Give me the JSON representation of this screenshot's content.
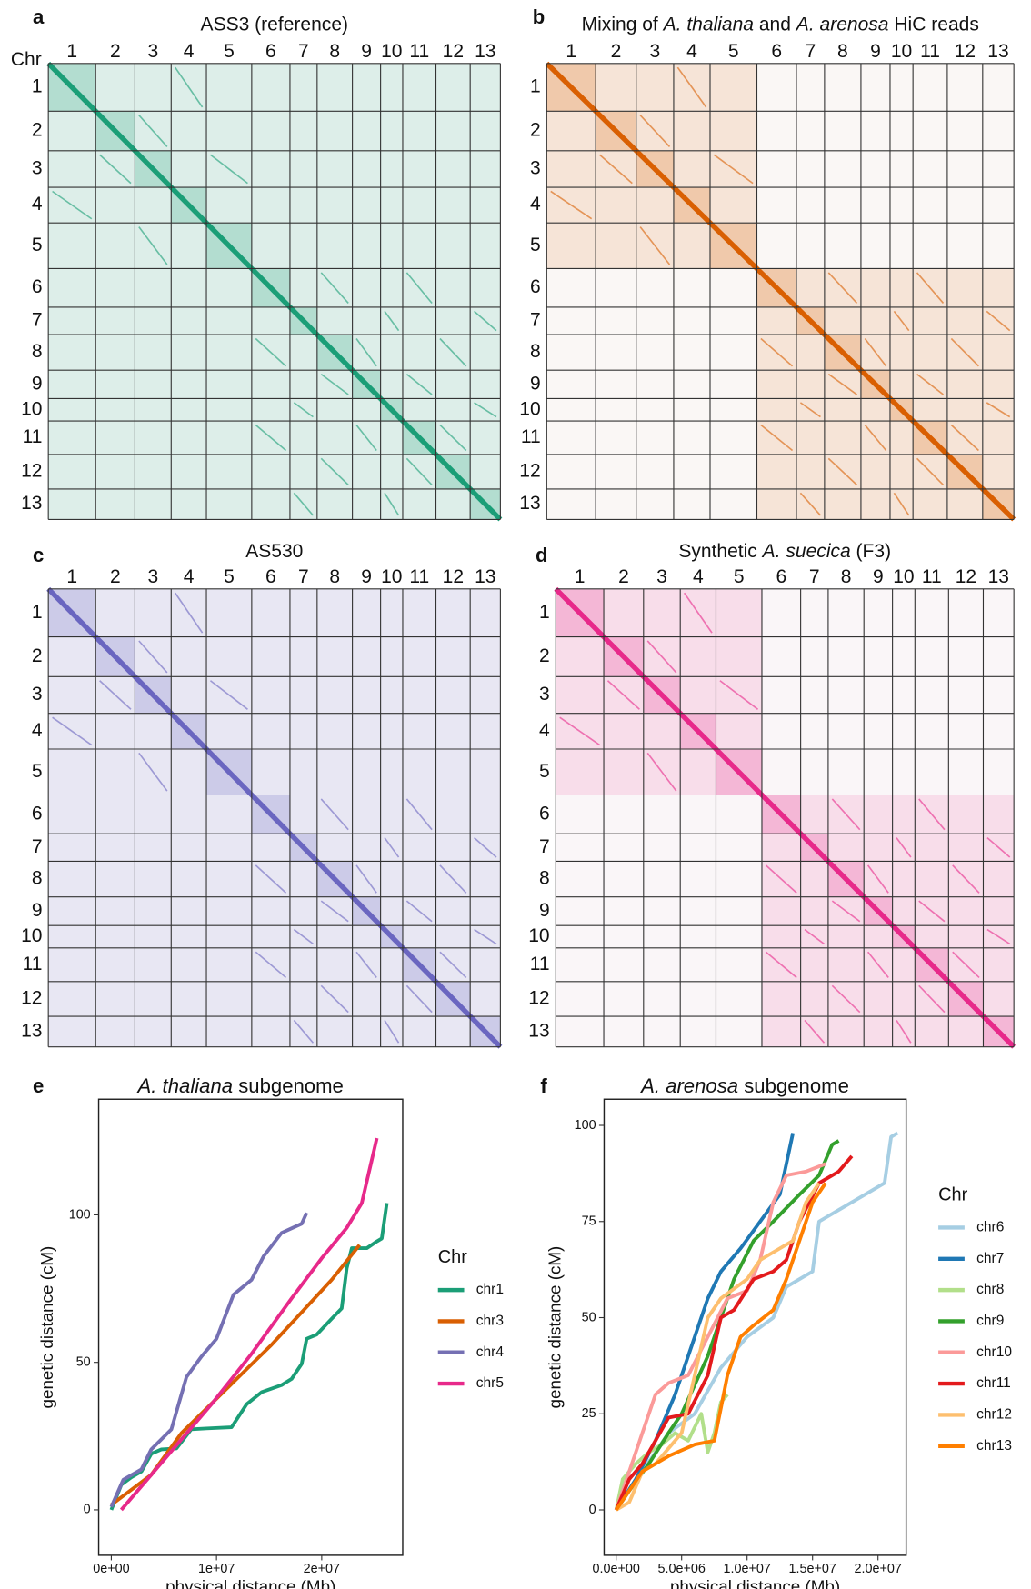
{
  "heatmaps": [
    {
      "panel": "a",
      "title": [
        {
          "text": "ASS3 (reference)"
        }
      ],
      "axis_label": "Chr",
      "chromosomes": [
        "1",
        "2",
        "3",
        "4",
        "5",
        "6",
        "7",
        "8",
        "9",
        "10",
        "11",
        "12",
        "13"
      ],
      "color": "#1b9e77",
      "subgenome_contrast": false
    },
    {
      "panel": "b",
      "title": [
        {
          "text": "Mixing of "
        },
        {
          "text": "A. thaliana",
          "italic": true
        },
        {
          "text": " and "
        },
        {
          "text": "A. arenosa",
          "italic": true
        },
        {
          "text": " HiC reads"
        }
      ],
      "chromosomes": [
        "1",
        "2",
        "3",
        "4",
        "5",
        "6",
        "7",
        "8",
        "9",
        "10",
        "11",
        "12",
        "13"
      ],
      "color": "#d95f02",
      "subgenome_contrast": true
    },
    {
      "panel": "c",
      "title": [
        {
          "text": "AS530"
        }
      ],
      "chromosomes": [
        "1",
        "2",
        "3",
        "4",
        "5",
        "6",
        "7",
        "8",
        "9",
        "10",
        "11",
        "12",
        "13"
      ],
      "color": "#6a66c0",
      "subgenome_contrast": false
    },
    {
      "panel": "d",
      "title": [
        {
          "text": "Synthetic "
        },
        {
          "text": "A. suecica",
          "italic": true
        },
        {
          "text": " (F3)"
        }
      ],
      "chromosomes": [
        "1",
        "2",
        "3",
        "4",
        "5",
        "6",
        "7",
        "8",
        "9",
        "10",
        "11",
        "12",
        "13"
      ],
      "color": "#e7298a",
      "subgenome_contrast": true
    }
  ],
  "chart_data": [
    {
      "type": "line",
      "panel": "e",
      "title": [
        {
          "text": "A. thaliana",
          "italic": true
        },
        {
          "text": " subgenome"
        }
      ],
      "x_label": "physical distance (Mb)",
      "y_label": "genetic distance (cM)",
      "legend_title": "Chr",
      "legend_position": "right",
      "xlim": [
        -1200000,
        27700000
      ],
      "ylim": [
        -15.4,
        139.2
      ],
      "xticks": [
        {
          "value": 0,
          "label": "0e+00"
        },
        {
          "value": 10000000,
          "label": "1e+07"
        },
        {
          "value": 20000000,
          "label": "2e+07"
        }
      ],
      "yticks": [
        0,
        50,
        100
      ],
      "series": [
        {
          "name": "chr1",
          "color": "#1b9e77",
          "x": [
            0,
            950000,
            1900000,
            2860000,
            3800000,
            4760000,
            6190000,
            7600000,
            9050000,
            11430000,
            12860000,
            14290000,
            16190000,
            17140000,
            18100000,
            18570000,
            19520000,
            20950000,
            21900000,
            22380000,
            22860000,
            24290000,
            25240000,
            25710000,
            26190000
          ],
          "values": [
            0,
            8.5,
            11,
            13,
            19,
            20.5,
            20.8,
            27.3,
            27.6,
            28,
            35.8,
            39.9,
            42.3,
            44.4,
            49.5,
            58,
            59.4,
            64.8,
            68.3,
            81.9,
            88.7,
            88.7,
            91,
            92,
            104
          ]
        },
        {
          "name": "chr3",
          "color": "#d95f02",
          "x": [
            0,
            1900000,
            3800000,
            6670000,
            9520000,
            12380000,
            15240000,
            18100000,
            20950000,
            23600000
          ],
          "values": [
            1.7,
            6.8,
            11.9,
            26,
            36,
            46,
            56,
            67,
            78,
            89.8
          ]
        },
        {
          "name": "chr4",
          "color": "#7570b3",
          "x": [
            0,
            1140000,
            2860000,
            3800000,
            4760000,
            5710000,
            7140000,
            8570000,
            10000000,
            11620000,
            13330000,
            14480000,
            16190000,
            18100000,
            18570000
          ],
          "values": [
            1,
            10.2,
            13.7,
            20.5,
            23.9,
            27.3,
            45,
            52,
            58,
            73,
            78,
            86,
            93.9,
            97,
            100.7
          ]
        },
        {
          "name": "chr5",
          "color": "#e7298a",
          "x": [
            950000,
            3800000,
            6670000,
            9520000,
            13330000,
            17140000,
            20000000,
            22380000,
            23810000,
            25240000
          ],
          "values": [
            0,
            11.9,
            23.9,
            35.8,
            52.9,
            71.7,
            85.3,
            95.6,
            104,
            126
          ]
        }
      ]
    },
    {
      "type": "line",
      "panel": "f",
      "title": [
        {
          "text": "A. arenosa",
          "italic": true
        },
        {
          "text": " subgenome"
        }
      ],
      "x_label": "physical distance (Mb)",
      "y_label": "genetic distance (cM)",
      "legend_title": "Chr",
      "legend_position": "right",
      "xlim": [
        -920000,
        22150000
      ],
      "ylim": [
        -11.8,
        106.8
      ],
      "xticks": [
        {
          "value": 0,
          "label": "0.0e+00"
        },
        {
          "value": 5000000,
          "label": "5.0e+06"
        },
        {
          "value": 10000000,
          "label": "1.0e+07"
        },
        {
          "value": 15000000,
          "label": "1.5e+07"
        },
        {
          "value": 20000000,
          "label": "2.0e+07"
        }
      ],
      "yticks": [
        0,
        25,
        50,
        75,
        100
      ],
      "series": [
        {
          "name": "chr6",
          "color": "#a6cee3",
          "x": [
            0,
            2000000.0,
            4000000.0,
            6000000.0,
            8000000.0,
            10000000.0,
            12000000.0,
            13000000.0,
            15000000.0,
            15500000.0,
            17000000.0,
            19000000.0,
            20500000.0,
            21000000.0,
            21500000.0
          ],
          "values": [
            0,
            10,
            20,
            25,
            37,
            45,
            50,
            58,
            62,
            75,
            78,
            82,
            85,
            97,
            98
          ]
        },
        {
          "name": "chr7",
          "color": "#1f78b4",
          "x": [
            0,
            1500000.0,
            3000000.0,
            4500000.0,
            6000000.0,
            7000000.0,
            8000000.0,
            9500000.0,
            11000000.0,
            12500000.0,
            13500000.0
          ],
          "values": [
            0,
            8,
            18,
            30,
            45,
            55,
            62,
            68,
            75,
            82,
            98
          ]
        },
        {
          "name": "chr8",
          "color": "#b2df8a",
          "x": [
            0,
            500000.0,
            1500000.0,
            2500000.0,
            3500000.0,
            4500000.0,
            5500000.0,
            6500000.0,
            7000000.0,
            7500000.0,
            8000000.0,
            8500000.0
          ],
          "values": [
            0,
            8,
            12,
            15,
            17,
            20,
            18,
            25,
            15,
            20,
            28,
            30
          ]
        },
        {
          "name": "chr9",
          "color": "#33a02c",
          "x": [
            0,
            1000000.0,
            2500000.0,
            4000000.0,
            5000000.0,
            7000000.0,
            9000000.0,
            10500000.0,
            12000000.0,
            14000000.0,
            15500000.0,
            16500000.0,
            17000000.0
          ],
          "values": [
            0,
            5,
            12,
            20,
            25,
            40,
            60,
            70,
            75,
            82,
            87,
            95,
            96
          ]
        },
        {
          "name": "chr10",
          "color": "#fb9a99",
          "x": [
            0,
            1000000.0,
            2000000.0,
            3000000.0,
            4000000.0,
            5500000.0,
            7000000.0,
            8500000.0,
            10000000.0,
            11000000.0,
            12000000.0,
            13000000.0,
            14500000.0,
            16000000.0
          ],
          "values": [
            0,
            10,
            20,
            30,
            33,
            35,
            45,
            55,
            57,
            65,
            80,
            87,
            88,
            90
          ]
        },
        {
          "name": "chr11",
          "color": "#e31a1c",
          "x": [
            0,
            1000000.0,
            2000000.0,
            3000000.0,
            4000000.0,
            5500000.0,
            7000000.0,
            8000000.0,
            9000000.0,
            10500000.0,
            12000000.0,
            13000000.0,
            14000000.0,
            15500000.0,
            17000000.0,
            18000000.0
          ],
          "values": [
            0,
            8,
            12,
            18,
            24,
            25,
            35,
            50,
            52,
            60,
            62,
            65,
            75,
            85,
            88,
            92
          ]
        },
        {
          "name": "chr12",
          "color": "#fdbf6f",
          "x": [
            0,
            1000000.0,
            2000000.0,
            3000000.0,
            5000000.0,
            6000000.0,
            7000000.0,
            8000000.0,
            10000000.0,
            11000000.0,
            12500000.0,
            13500000.0,
            14500000.0,
            15500000.0
          ],
          "values": [
            0,
            2,
            10,
            12,
            20,
            35,
            50,
            55,
            60,
            65,
            68,
            70,
            80,
            85
          ]
        },
        {
          "name": "chr13",
          "color": "#ff7f00",
          "x": [
            0,
            1000000.0,
            2000000.0,
            4000000.0,
            6000000.0,
            7500000.0,
            8500000.0,
            9500000.0,
            10500000.0,
            12000000.0,
            13000000.0,
            14000000.0,
            15000000.0,
            16000000.0
          ],
          "values": [
            0,
            5,
            10,
            14,
            17,
            18,
            35,
            45,
            48,
            52,
            60,
            70,
            80,
            85
          ]
        }
      ]
    }
  ]
}
